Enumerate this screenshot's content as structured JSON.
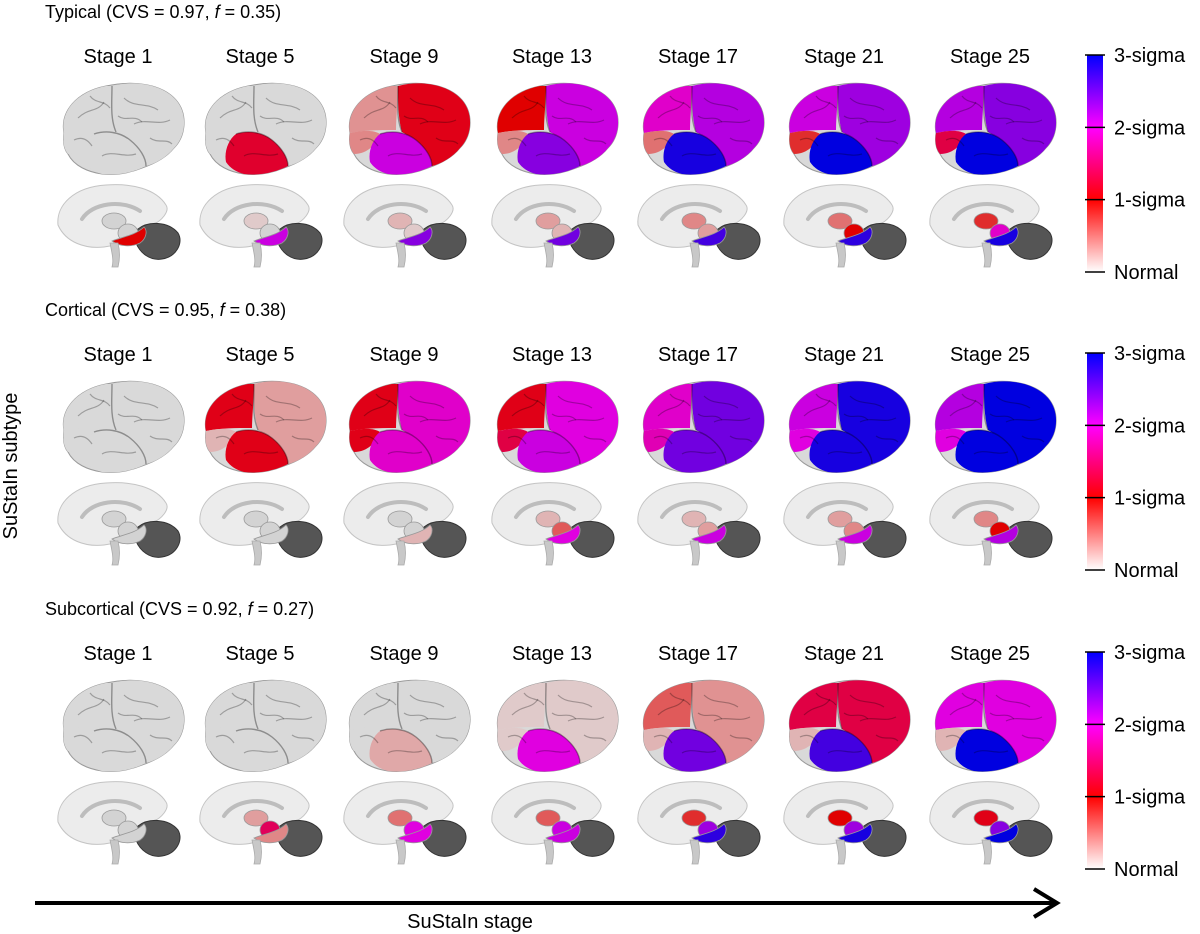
{
  "y_axis_label": "SuStaIn subtype",
  "x_axis_label": "SuStaIn stage",
  "colorbar": {
    "labels": [
      "3-sigma",
      "2-sigma",
      "1-sigma",
      "Normal"
    ],
    "colors": {
      "normal": "#ffffff",
      "one_sigma": "#ff0000",
      "two_sigma": "#ff00ff",
      "three_sigma": "#0000ff"
    }
  },
  "stages": [
    "Stage 1",
    "Stage 5",
    "Stage 9",
    "Stage 13",
    "Stage 17",
    "Stage 21",
    "Stage 25"
  ],
  "subtypes": [
    {
      "title_prefix": "Typical (CVS = 0.97, ",
      "title_f": "f",
      "title_suffix": " = 0.35)",
      "cortex": [
        {
          "frontal": 0,
          "parietal": 0,
          "occipital": 0,
          "temporal": 0
        },
        {
          "frontal": 0,
          "parietal": 0,
          "occipital": 0,
          "temporal": 1.2
        },
        {
          "frontal": 1.1,
          "parietal": 0.35,
          "occipital": 0.4,
          "temporal": 2.1
        },
        {
          "frontal": 2.1,
          "parietal": 1.0,
          "occipital": 0.4,
          "temporal": 2.4
        },
        {
          "frontal": 2.2,
          "parietal": 1.9,
          "occipital": 0.5,
          "temporal": 2.9
        },
        {
          "frontal": 2.3,
          "parietal": 2.1,
          "occipital": 0.8,
          "temporal": 3.0
        },
        {
          "frontal": 2.4,
          "parietal": 2.2,
          "occipital": 1.3,
          "temporal": 3.0
        }
      ],
      "subcortex": [
        {
          "thalamus": 0,
          "hippocampus": 1.0,
          "striatum": 0
        },
        {
          "thalamus": 0.1,
          "hippocampus": 2.1,
          "striatum": 0
        },
        {
          "thalamus": 0.2,
          "hippocampus": 2.4,
          "striatum": 0.1
        },
        {
          "thalamus": 0.3,
          "hippocampus": 2.5,
          "striatum": 0.2
        },
        {
          "thalamus": 0.4,
          "hippocampus": 2.7,
          "striatum": 0.3
        },
        {
          "thalamus": 0.5,
          "hippocampus": 2.8,
          "striatum": 1.0
        },
        {
          "thalamus": 0.8,
          "hippocampus": 2.9,
          "striatum": 1.9
        }
      ]
    },
    {
      "title_prefix": "Cortical (CVS = 0.95, ",
      "title_f": "f",
      "title_suffix": " = 0.38)",
      "cortex": [
        {
          "frontal": 0,
          "parietal": 0,
          "occipital": 0,
          "temporal": 0
        },
        {
          "frontal": 0.3,
          "parietal": 1.1,
          "occipital": 0.2,
          "temporal": 1.1
        },
        {
          "frontal": 1.9,
          "parietal": 1.1,
          "occipital": 1.1,
          "temporal": 1.9
        },
        {
          "frontal": 2.0,
          "parietal": 1.1,
          "occipital": 1.3,
          "temporal": 2.1
        },
        {
          "frontal": 2.5,
          "parietal": 1.9,
          "occipital": 1.8,
          "temporal": 2.5
        },
        {
          "frontal": 2.9,
          "parietal": 2.1,
          "occipital": 2.0,
          "temporal": 2.9
        },
        {
          "frontal": 3.0,
          "parietal": 2.2,
          "occipital": 2.0,
          "temporal": 3.0
        }
      ],
      "subcortex": [
        {
          "thalamus": 0,
          "hippocampus": 0,
          "striatum": 0
        },
        {
          "thalamus": 0,
          "hippocampus": 0,
          "striatum": 0
        },
        {
          "thalamus": 0,
          "hippocampus": 0.2,
          "striatum": 0
        },
        {
          "thalamus": 0.2,
          "hippocampus": 2.0,
          "striatum": 0.6
        },
        {
          "thalamus": 0.2,
          "hippocampus": 2.1,
          "striatum": 0.3
        },
        {
          "thalamus": 0.3,
          "hippocampus": 2.1,
          "striatum": 0.4
        },
        {
          "thalamus": 0.4,
          "hippocampus": 2.2,
          "striatum": 1.0
        }
      ]
    },
    {
      "title_prefix": "Subcortical (CVS = 0.92, ",
      "title_f": "f",
      "title_suffix": " = 0.27)",
      "cortex": [
        {
          "frontal": 0,
          "parietal": 0,
          "occipital": 0,
          "temporal": 0
        },
        {
          "frontal": 0,
          "parietal": 0,
          "occipital": 0,
          "temporal": 0
        },
        {
          "frontal": 0,
          "parietal": 0,
          "occipital": 0,
          "temporal": 0.25
        },
        {
          "frontal": 0.1,
          "parietal": 0.1,
          "occipital": 0.1,
          "temporal": 2.0
        },
        {
          "frontal": 0.35,
          "parietal": 0.6,
          "occipital": 0.2,
          "temporal": 2.5
        },
        {
          "frontal": 1.3,
          "parietal": 1.3,
          "occipital": 0.2,
          "temporal": 2.7
        },
        {
          "frontal": 2.0,
          "parietal": 2.0,
          "occipital": 0.2,
          "temporal": 3.0
        }
      ],
      "subcortex": [
        {
          "thalamus": 0,
          "hippocampus": 0,
          "striatum": 0
        },
        {
          "thalamus": 0.3,
          "hippocampus": 0.4,
          "striatum": 1.4
        },
        {
          "thalamus": 0.5,
          "hippocampus": 2.0,
          "striatum": 2.0
        },
        {
          "thalamus": 0.6,
          "hippocampus": 2.1,
          "striatum": 2.1
        },
        {
          "thalamus": 0.8,
          "hippocampus": 2.8,
          "striatum": 2.3
        },
        {
          "thalamus": 1.0,
          "hippocampus": 2.9,
          "striatum": 2.3
        },
        {
          "thalamus": 1.1,
          "hippocampus": 3.0,
          "striatum": 2.4
        }
      ]
    }
  ]
}
